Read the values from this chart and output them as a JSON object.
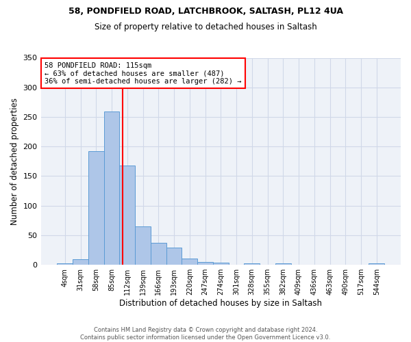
{
  "title1": "58, PONDFIELD ROAD, LATCHBROOK, SALTASH, PL12 4UA",
  "title2": "Size of property relative to detached houses in Saltash",
  "xlabel": "Distribution of detached houses by size in Saltash",
  "ylabel": "Number of detached properties",
  "bin_labels": [
    "4sqm",
    "31sqm",
    "58sqm",
    "85sqm",
    "112sqm",
    "139sqm",
    "166sqm",
    "193sqm",
    "220sqm",
    "247sqm",
    "274sqm",
    "301sqm",
    "328sqm",
    "355sqm",
    "382sqm",
    "409sqm",
    "436sqm",
    "463sqm",
    "490sqm",
    "517sqm",
    "544sqm"
  ],
  "bar_heights": [
    2,
    9,
    192,
    259,
    168,
    65,
    37,
    29,
    11,
    5,
    4,
    0,
    3,
    0,
    2,
    0,
    0,
    0,
    0,
    0,
    2
  ],
  "bar_color": "#aec6e8",
  "bar_edge_color": "#5b9bd5",
  "grid_color": "#d0d8e8",
  "background_color": "#eef2f8",
  "vline_x": 3.72,
  "annotation_text": "58 PONDFIELD ROAD: 115sqm\n← 63% of detached houses are smaller (487)\n36% of semi-detached houses are larger (282) →",
  "annotation_box_color": "white",
  "annotation_box_edge_color": "red",
  "vline_color": "red",
  "footer_text": "Contains HM Land Registry data © Crown copyright and database right 2024.\nContains public sector information licensed under the Open Government Licence v3.0.",
  "ylim": [
    0,
    350
  ],
  "yticks": [
    0,
    50,
    100,
    150,
    200,
    250,
    300,
    350
  ]
}
